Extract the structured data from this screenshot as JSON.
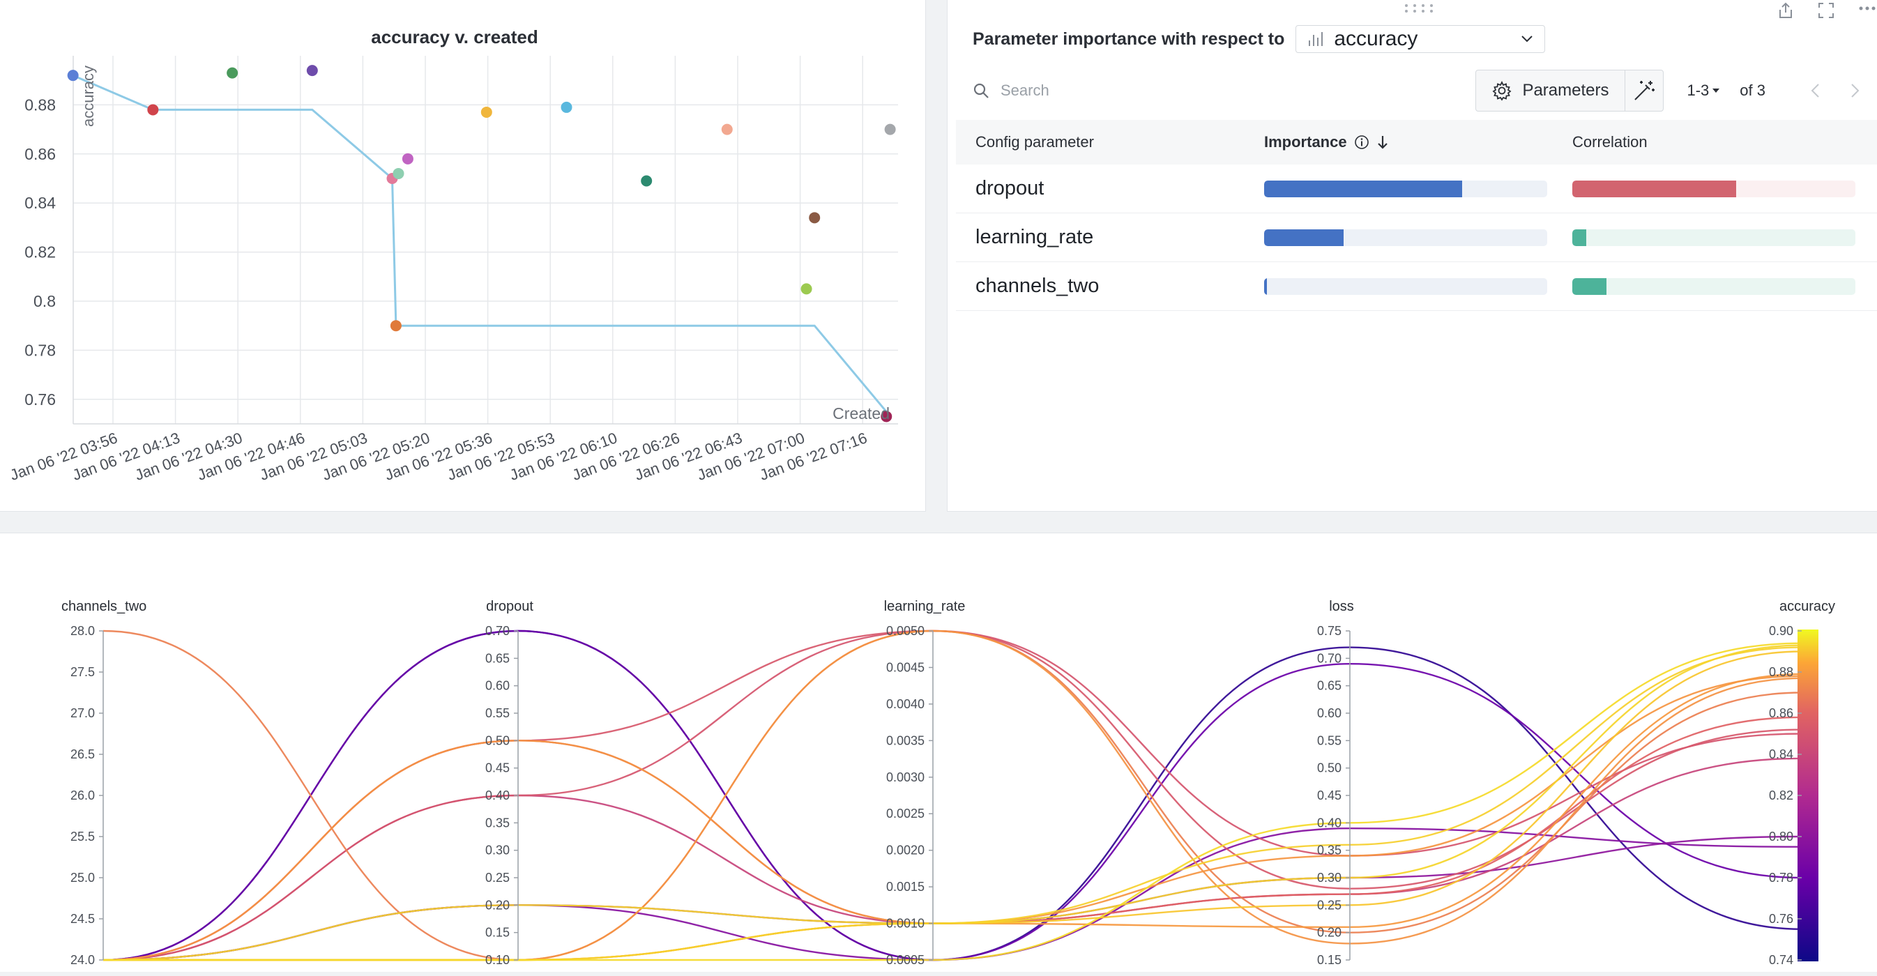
{
  "scatter_panel": {
    "chart_data": {
      "type": "scatter",
      "title": "accuracy v. created",
      "ylabel": "accuracy",
      "xlabel": "Created",
      "ylim": [
        0.75,
        0.9
      ],
      "yticks": [
        0.76,
        0.78,
        0.8,
        0.82,
        0.84,
        0.86,
        0.88
      ],
      "ytick_labels": [
        "0.76",
        "0.78",
        "0.8",
        "0.82",
        "0.84",
        "0.86",
        "0.88"
      ],
      "xticks": [
        0,
        1,
        2,
        3,
        4,
        5,
        6,
        7,
        8,
        9,
        10,
        11,
        12
      ],
      "xtick_labels": [
        "Jan 06 '22 03:56",
        "Jan 06 '22 04:13",
        "Jan 06 '22 04:30",
        "Jan 06 '22 04:46",
        "Jan 06 '22 05:03",
        "Jan 06 '22 05:20",
        "Jan 06 '22 05:36",
        "Jan 06 '22 05:53",
        "Jan 06 '22 06:10",
        "Jan 06 '22 06:26",
        "Jan 06 '22 06:43",
        "Jan 06 '22 07:00",
        "Jan 06 '22 07:16"
      ],
      "xlim": [
        -0.64,
        12.5
      ],
      "grid": true,
      "points": [
        {
          "x": -0.64,
          "y": 0.892,
          "color": "#5b7fd6"
        },
        {
          "x": 0.64,
          "y": 0.878,
          "color": "#d0444b"
        },
        {
          "x": 1.91,
          "y": 0.893,
          "color": "#4a9a5c"
        },
        {
          "x": 3.19,
          "y": 0.894,
          "color": "#6e4cab"
        },
        {
          "x": 4.47,
          "y": 0.85,
          "color": "#e27a9a"
        },
        {
          "x": 4.57,
          "y": 0.852,
          "color": "#8ecfb0"
        },
        {
          "x": 4.72,
          "y": 0.858,
          "color": "#c064c2"
        },
        {
          "x": 4.53,
          "y": 0.79,
          "color": "#e07a3a"
        },
        {
          "x": 5.98,
          "y": 0.877,
          "color": "#f0b63c"
        },
        {
          "x": 7.26,
          "y": 0.879,
          "color": "#5ab8de"
        },
        {
          "x": 8.54,
          "y": 0.849,
          "color": "#2c8a70"
        },
        {
          "x": 9.83,
          "y": 0.87,
          "color": "#f2a890"
        },
        {
          "x": 11.1,
          "y": 0.805,
          "color": "#9cca50"
        },
        {
          "x": 11.23,
          "y": 0.834,
          "color": "#8a5a44"
        },
        {
          "x": 12.44,
          "y": 0.87,
          "color": "#a4a7ab"
        },
        {
          "x": 12.38,
          "y": 0.753,
          "color": "#a02456"
        }
      ],
      "line": {
        "color": "#8ecae6",
        "points": [
          [
            -0.64,
            0.892
          ],
          [
            0.64,
            0.878
          ],
          [
            3.19,
            0.878
          ],
          [
            4.47,
            0.85
          ],
          [
            4.53,
            0.79
          ],
          [
            11.23,
            0.79
          ],
          [
            12.38,
            0.755
          ]
        ]
      }
    }
  },
  "importance_panel": {
    "title": "Parameter importance with respect to",
    "metric": "accuracy",
    "search_placeholder": "Search",
    "parameters_label": "Parameters",
    "page_range": "1-3",
    "page_total": "of 3",
    "columns": {
      "name": "Config parameter",
      "importance": "Importance",
      "correlation": "Correlation"
    },
    "colors": {
      "importance": "#4472c4",
      "importance_track": "#edf1f7",
      "corr_negative": "#d2646f",
      "corr_negative_track": "#fbf0f1",
      "corr_positive": "#4db39a",
      "corr_positive_track": "#eaf6f2"
    },
    "rows": [
      {
        "name": "dropout",
        "importance": 0.7,
        "correlation": -0.58
      },
      {
        "name": "learning_rate",
        "importance": 0.28,
        "correlation": 0.05
      },
      {
        "name": "channels_two",
        "importance": 0.01,
        "correlation": 0.12
      }
    ]
  },
  "parallel_panel": {
    "chart_data": {
      "type": "parallel_coordinates",
      "axes": [
        {
          "name": "channels_two",
          "min": 24.0,
          "max": 28.0,
          "ticks": [
            "28.0",
            "27.5",
            "27.0",
            "26.5",
            "26.0",
            "25.5",
            "25.0",
            "24.5",
            "24.0"
          ]
        },
        {
          "name": "dropout",
          "min": 0.1,
          "max": 0.7,
          "ticks": [
            "0.70",
            "0.65",
            "0.60",
            "0.55",
            "0.50",
            "0.45",
            "0.40",
            "0.35",
            "0.30",
            "0.25",
            "0.20",
            "0.15",
            "0.10"
          ]
        },
        {
          "name": "learning_rate",
          "min": 0.0005,
          "max": 0.005,
          "ticks": [
            "0.0050",
            "0.0045",
            "0.0040",
            "0.0035",
            "0.0030",
            "0.0025",
            "0.0020",
            "0.0015",
            "0.0010",
            "0.0005"
          ]
        },
        {
          "name": "loss",
          "min": 0.15,
          "max": 0.75,
          "ticks": [
            "0.75",
            "0.70",
            "0.65",
            "0.60",
            "0.55",
            "0.50",
            "0.45",
            "0.40",
            "0.35",
            "0.30",
            "0.25",
            "0.20",
            "0.15"
          ]
        },
        {
          "name": "accuracy",
          "min": 0.74,
          "max": 0.9,
          "ticks": [
            "0.90",
            "0.88",
            "0.86",
            "0.84",
            "0.82",
            "0.80",
            "0.78",
            "0.76",
            "0.74"
          ]
        }
      ],
      "colorbar": {
        "metric": "accuracy",
        "min": 0.74,
        "max": 0.9
      },
      "runs": [
        {
          "values": [
            24,
            0.7,
            0.0005,
            0.72,
            0.755
          ]
        },
        {
          "values": [
            24,
            0.7,
            0.0005,
            0.69,
            0.78
          ]
        },
        {
          "values": [
            24,
            0.2,
            0.0005,
            0.39,
            0.795
          ]
        },
        {
          "values": [
            24,
            0.2,
            0.001,
            0.3,
            0.8
          ]
        },
        {
          "values": [
            24,
            0.4,
            0.001,
            0.27,
            0.838
          ]
        },
        {
          "values": [
            24,
            0.4,
            0.005,
            0.34,
            0.85
          ]
        },
        {
          "values": [
            24,
            0.5,
            0.005,
            0.28,
            0.852
          ]
        },
        {
          "values": [
            24,
            0.5,
            0.001,
            0.27,
            0.858
          ]
        },
        {
          "values": [
            28,
            0.1,
            0.005,
            0.2,
            0.87
          ]
        },
        {
          "values": [
            24,
            0.1,
            0.005,
            0.18,
            0.877
          ]
        },
        {
          "values": [
            24,
            0.5,
            0.001,
            0.34,
            0.878
          ]
        },
        {
          "values": [
            24,
            0.1,
            0.001,
            0.21,
            0.879
          ]
        },
        {
          "values": [
            24,
            0.1,
            0.001,
            0.25,
            0.89
          ]
        },
        {
          "values": [
            24,
            0.1,
            0.001,
            0.36,
            0.892
          ]
        },
        {
          "values": [
            24,
            0.2,
            0.001,
            0.3,
            0.893
          ]
        },
        {
          "values": [
            24,
            0.1,
            0.0005,
            0.4,
            0.894
          ]
        }
      ]
    }
  }
}
